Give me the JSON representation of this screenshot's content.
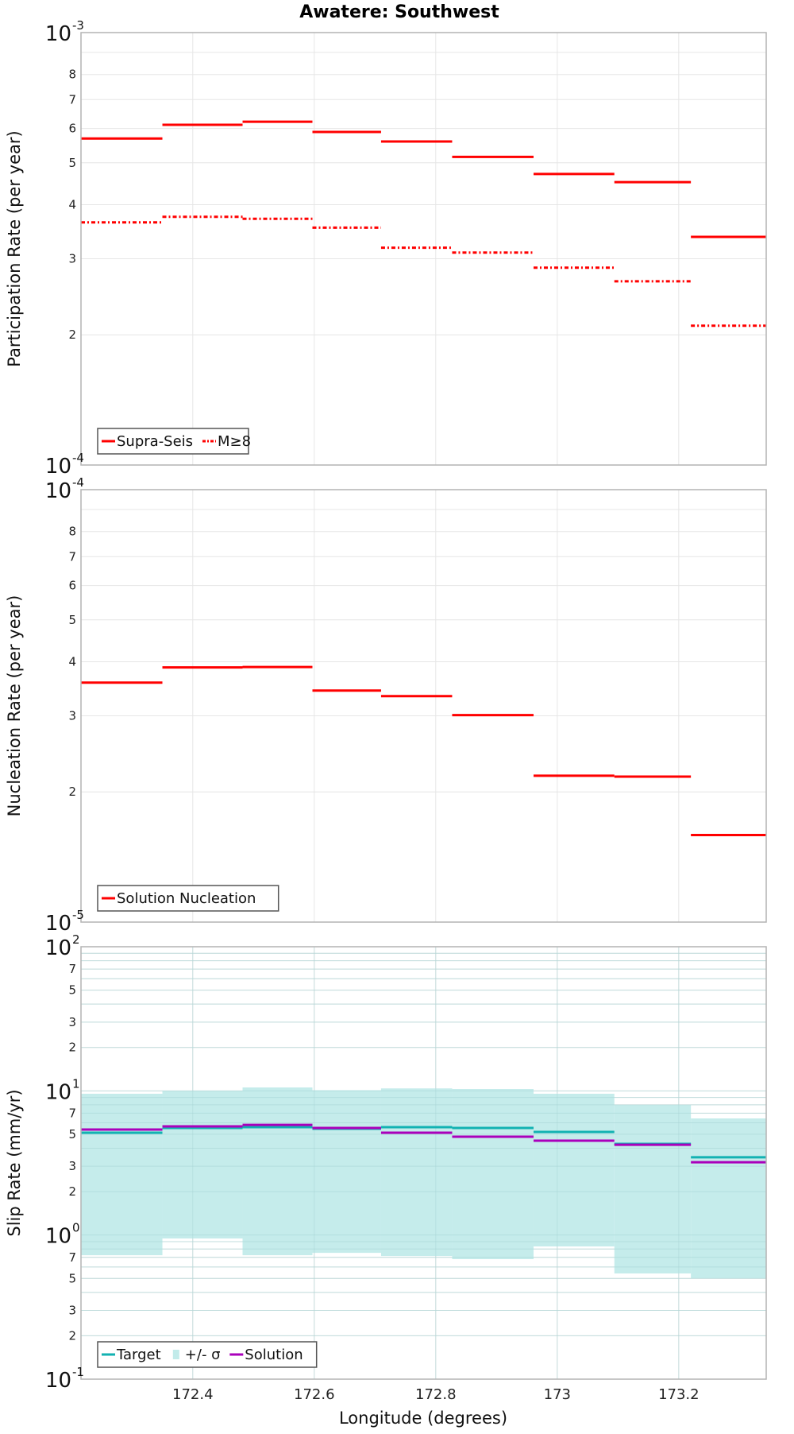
{
  "title": "Awatere: Southwest",
  "xlabel": "Longitude (degrees)",
  "x_ticks": [
    "172.4",
    "172.6",
    "172.8",
    "173",
    "173.2"
  ],
  "colors": {
    "supra_seis": "#ff0000",
    "m8": "#ff0000",
    "nucleation": "#ff0000",
    "target": "#12b2b2",
    "sigma_band": "#c2ebea",
    "solution": "#aa00bb",
    "grid": "#e6e6e6",
    "frame": "#b4b4b4"
  },
  "panels": [
    {
      "ylabel": "Participation Rate (per year)",
      "ytop_label": {
        "base": "10",
        "exp": "-3"
      },
      "ybottom_label": {
        "base": "10",
        "exp": "-4"
      },
      "minor_ticks": [
        "8",
        "7",
        "6",
        "5",
        "4",
        "3",
        "2"
      ],
      "legend": [
        {
          "label": "Supra-Seis",
          "style": "solid"
        },
        {
          "label": "M≥8",
          "style": "dashdot"
        }
      ]
    },
    {
      "ylabel": "Nucleation Rate (per year)",
      "ytop_label": {
        "base": "10",
        "exp": "-4"
      },
      "ybottom_label": {
        "base": "10",
        "exp": "-5"
      },
      "minor_ticks": [
        "8",
        "7",
        "6",
        "5",
        "4",
        "3",
        "2"
      ],
      "legend": [
        {
          "label": "Solution Nucleation",
          "style": "solid"
        }
      ]
    },
    {
      "ylabel": "Slip Rate (mm/yr)",
      "ytop_label": {
        "base": "10",
        "exp": "2"
      },
      "mid_labels": [
        {
          "base": "10",
          "exp": "1"
        },
        {
          "base": "10",
          "exp": "0"
        }
      ],
      "ybottom_label": {
        "base": "10",
        "exp": "-1"
      },
      "minor_ticks": [
        "7",
        "5",
        "3",
        "2"
      ],
      "legend": [
        {
          "label": "Target",
          "style": "solid"
        },
        {
          "label": "+/- σ",
          "style": "band"
        },
        {
          "label": "Solution",
          "style": "solid"
        }
      ]
    }
  ],
  "chart_data": [
    {
      "type": "line",
      "subtype": "step",
      "title": "Awatere: Southwest",
      "xlabel": "Longitude (degrees)",
      "ylabel": "Participation Rate (per year)",
      "yscale": "log",
      "xlim": [
        172.216,
        173.344
      ],
      "ylim": [
        0.0001,
        0.001
      ],
      "grid": true,
      "legend_position": "lower left",
      "x_edges": [
        172.216,
        172.35,
        172.482,
        172.597,
        172.71,
        172.827,
        172.961,
        173.094,
        173.22,
        173.344
      ],
      "series": [
        {
          "name": "Supra-Seis",
          "style": "solid",
          "values": [
            0.000569,
            0.000612,
            0.000622,
            0.000589,
            0.00056,
            0.000516,
            0.000471,
            0.000451,
            0.000337
          ]
        },
        {
          "name": "M≥8",
          "style": "dash-dot",
          "values": [
            0.000364,
            0.000375,
            0.000371,
            0.000354,
            0.000318,
            0.00031,
            0.000286,
            0.000266,
            0.00021
          ]
        }
      ]
    },
    {
      "type": "line",
      "subtype": "step",
      "xlabel": "Longitude (degrees)",
      "ylabel": "Nucleation Rate (per year)",
      "yscale": "log",
      "xlim": [
        172.216,
        173.344
      ],
      "ylim": [
        1e-05,
        0.0001
      ],
      "grid": true,
      "legend_position": "lower left",
      "x_edges": [
        172.216,
        172.35,
        172.482,
        172.597,
        172.71,
        172.827,
        172.961,
        173.094,
        173.22,
        173.344
      ],
      "series": [
        {
          "name": "Solution Nucleation",
          "style": "solid",
          "values": [
            3.58e-05,
            3.88e-05,
            3.89e-05,
            3.43e-05,
            3.33e-05,
            3.01e-05,
            2.18e-05,
            2.17e-05,
            1.59e-05
          ]
        }
      ]
    },
    {
      "type": "line",
      "subtype": "step",
      "xlabel": "Longitude (degrees)",
      "ylabel": "Slip Rate (mm/yr)",
      "yscale": "log",
      "xlim": [
        172.216,
        173.344
      ],
      "ylim": [
        0.1,
        100
      ],
      "x_ticks": [
        172.4,
        172.6,
        172.8,
        173.0,
        173.2
      ],
      "grid": true,
      "legend_position": "lower left",
      "x_edges": [
        172.216,
        172.35,
        172.482,
        172.597,
        172.71,
        172.827,
        172.961,
        173.094,
        173.22,
        173.344
      ],
      "series": [
        {
          "name": "Target",
          "style": "solid",
          "values": [
            5.12,
            5.53,
            5.6,
            5.46,
            5.6,
            5.53,
            5.19,
            4.29,
            3.46
          ]
        },
        {
          "name": "+/- σ upper",
          "style": "band",
          "values": [
            9.55,
            10.0,
            10.56,
            10.1,
            10.4,
            10.3,
            9.55,
            7.98,
            6.44
          ]
        },
        {
          "name": "+/- σ lower",
          "style": "band",
          "values": [
            0.724,
            0.946,
            0.724,
            0.752,
            0.715,
            0.68,
            0.833,
            0.541,
            0.501
          ]
        },
        {
          "name": "Solution",
          "style": "solid",
          "values": [
            5.39,
            5.67,
            5.81,
            5.53,
            5.12,
            4.81,
            4.51,
            4.23,
            3.2
          ]
        }
      ]
    }
  ]
}
